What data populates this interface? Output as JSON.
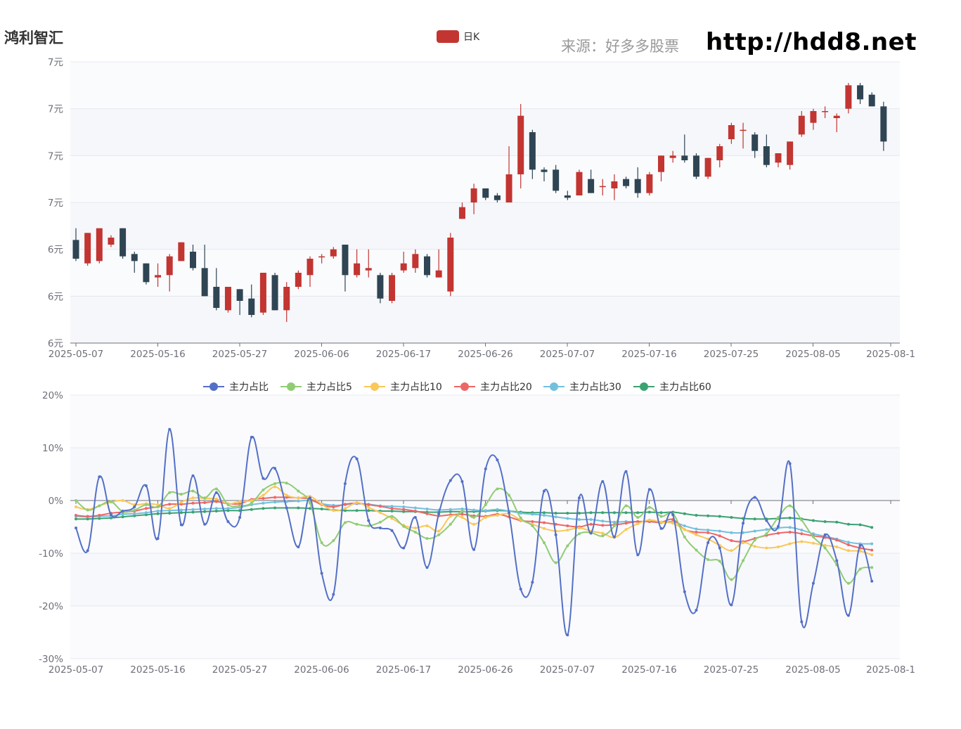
{
  "header": {
    "title": "鸿利智汇",
    "source": "来源：好多多股票",
    "url": "http://hdd8.net"
  },
  "colors": {
    "up": "#c23531",
    "down": "#2f4554",
    "series": [
      "#5470c6",
      "#91cc75",
      "#fac858",
      "#ee6666",
      "#73c0de",
      "#3ba272"
    ]
  },
  "chart_data": [
    {
      "type": "candlestick",
      "legend": [
        "日K"
      ],
      "ytick_labels": [
        "6元",
        "6元",
        "6元",
        "7元",
        "7元",
        "7元",
        "7元"
      ],
      "xtick_labels": [
        "2025-05-07",
        "2025-05-16",
        "2025-05-27",
        "2025-06-06",
        "2025-06-17",
        "2025-06-26",
        "2025-07-07",
        "2025-07-16",
        "2025-07-25",
        "2025-08-05",
        "2025-08-1"
      ],
      "ylim": [
        6.0,
        7.2
      ],
      "candles": [
        [
          6.44,
          6.36,
          6.35,
          6.49
        ],
        [
          6.34,
          6.47,
          6.33,
          6.47
        ],
        [
          6.35,
          6.49,
          6.34,
          6.49
        ],
        [
          6.42,
          6.45,
          6.41,
          6.46
        ],
        [
          6.49,
          6.37,
          6.36,
          6.49
        ],
        [
          6.38,
          6.35,
          6.3,
          6.39
        ],
        [
          6.34,
          6.26,
          6.25,
          6.34
        ],
        [
          6.28,
          6.29,
          6.24,
          6.34
        ],
        [
          6.29,
          6.37,
          6.22,
          6.38
        ],
        [
          6.35,
          6.43,
          6.35,
          6.43
        ],
        [
          6.39,
          6.32,
          6.31,
          6.42
        ],
        [
          6.32,
          6.2,
          6.2,
          6.42
        ],
        [
          6.24,
          6.15,
          6.14,
          6.32
        ],
        [
          6.14,
          6.24,
          6.13,
          6.24
        ],
        [
          6.23,
          6.18,
          6.12,
          6.23
        ],
        [
          6.19,
          6.12,
          6.11,
          6.25
        ],
        [
          6.13,
          6.3,
          6.12,
          6.3
        ],
        [
          6.29,
          6.14,
          6.14,
          6.3
        ],
        [
          6.14,
          6.24,
          6.09,
          6.26
        ],
        [
          6.24,
          6.3,
          6.23,
          6.31
        ],
        [
          6.29,
          6.36,
          6.24,
          6.37
        ],
        [
          6.37,
          6.37,
          6.34,
          6.38
        ],
        [
          6.37,
          6.4,
          6.36,
          6.41
        ],
        [
          6.42,
          6.29,
          6.22,
          6.42
        ],
        [
          6.29,
          6.34,
          6.28,
          6.4
        ],
        [
          6.31,
          6.32,
          6.28,
          6.4
        ],
        [
          6.29,
          6.19,
          6.17,
          6.3
        ],
        [
          6.18,
          6.29,
          6.17,
          6.3
        ],
        [
          6.31,
          6.34,
          6.3,
          6.39
        ],
        [
          6.32,
          6.38,
          6.3,
          6.4
        ],
        [
          6.37,
          6.29,
          6.28,
          6.38
        ],
        [
          6.28,
          6.31,
          6.28,
          6.4
        ],
        [
          6.22,
          6.45,
          6.2,
          6.47
        ],
        [
          6.53,
          6.58,
          6.53,
          6.6
        ],
        [
          6.6,
          6.66,
          6.55,
          6.68
        ],
        [
          6.66,
          6.62,
          6.61,
          6.65
        ],
        [
          6.63,
          6.61,
          6.6,
          6.64
        ],
        [
          6.6,
          6.72,
          6.6,
          6.84
        ],
        [
          6.72,
          6.97,
          6.66,
          7.02
        ],
        [
          6.9,
          6.74,
          6.7,
          6.91
        ],
        [
          6.74,
          6.73,
          6.69,
          6.75
        ],
        [
          6.74,
          6.65,
          6.64,
          6.76
        ],
        [
          6.63,
          6.62,
          6.61,
          6.65
        ],
        [
          6.63,
          6.73,
          6.63,
          6.74
        ],
        [
          6.7,
          6.64,
          6.64,
          6.74
        ],
        [
          6.67,
          6.67,
          6.63,
          6.7
        ],
        [
          6.66,
          6.69,
          6.61,
          6.72
        ],
        [
          6.7,
          6.67,
          6.66,
          6.71
        ],
        [
          6.7,
          6.64,
          6.62,
          6.75
        ],
        [
          6.64,
          6.72,
          6.63,
          6.73
        ],
        [
          6.73,
          6.8,
          6.69,
          6.8
        ],
        [
          6.79,
          6.8,
          6.77,
          6.82
        ],
        [
          6.8,
          6.78,
          6.77,
          6.89
        ],
        [
          6.8,
          6.71,
          6.7,
          6.81
        ],
        [
          6.71,
          6.79,
          6.7,
          6.79
        ],
        [
          6.78,
          6.84,
          6.75,
          6.85
        ],
        [
          6.87,
          6.93,
          6.85,
          6.94
        ],
        [
          6.91,
          6.91,
          6.83,
          6.94
        ],
        [
          6.89,
          6.82,
          6.79,
          6.9
        ],
        [
          6.84,
          6.76,
          6.75,
          6.89
        ],
        [
          6.77,
          6.81,
          6.75,
          6.81
        ],
        [
          6.76,
          6.86,
          6.74,
          6.86
        ],
        [
          6.89,
          6.97,
          6.88,
          6.99
        ],
        [
          6.94,
          6.99,
          6.91,
          7.0
        ],
        [
          6.99,
          6.99,
          6.96,
          7.01
        ],
        [
          6.96,
          6.97,
          6.9,
          6.98
        ],
        [
          7.0,
          7.1,
          6.98,
          7.11
        ],
        [
          7.1,
          7.04,
          7.02,
          7.11
        ],
        [
          7.06,
          7.01,
          7.01,
          7.07
        ],
        [
          7.01,
          6.86,
          6.82,
          7.03
        ]
      ]
    },
    {
      "type": "line",
      "ytick_labels": [
        "-30%",
        "-20%",
        "-10%",
        "0%",
        "10%",
        "20%"
      ],
      "xtick_labels": [
        "2025-05-07",
        "2025-05-16",
        "2025-05-27",
        "2025-06-06",
        "2025-06-17",
        "2025-06-26",
        "2025-07-07",
        "2025-07-16",
        "2025-07-25",
        "2025-08-05",
        "2025-08-1"
      ],
      "ylim": [
        -30,
        20
      ],
      "series": [
        {
          "name": "主力占比",
          "values": [
            -5.2,
            -9.5,
            4.5,
            -2.7,
            -2.0,
            -1.2,
            2.8,
            -7.2,
            13.5,
            -4.6,
            4.7,
            -4.5,
            1.5,
            -4.0,
            -3.2,
            12.0,
            4.2,
            6.1,
            -1.4,
            -8.8,
            0.5,
            -13.8,
            -17.8,
            3.2,
            7.9,
            -3.8,
            -5.2,
            -5.7,
            -9.0,
            -3.2,
            -12.7,
            -2.5,
            3.8,
            3.6,
            -9.3,
            6.0,
            7.7,
            -2.3,
            -16.8,
            -15.5,
            1.8,
            -6.5,
            -25.5,
            0.5,
            -6.2,
            3.6,
            -6.9,
            5.5,
            -10.3,
            2.1,
            -5.3,
            -2.7,
            -17.3,
            -20.8,
            -8.0,
            -9.0,
            -19.8,
            -4.3,
            0.6,
            -3.8,
            -4.9,
            7.0,
            -23.0,
            -15.7,
            -6.5,
            -11.4,
            -21.8,
            -8.5,
            -15.3
          ]
        },
        {
          "name": "主力占比5",
          "values": [
            0.0,
            -1.8,
            -1.0,
            -0.2,
            -2.1,
            -1.8,
            -0.8,
            -1.2,
            1.5,
            1.2,
            1.8,
            0.5,
            2.2,
            -0.8,
            -1.0,
            -0.5,
            2.0,
            3.2,
            3.3,
            1.8,
            -0.5,
            -8.0,
            -7.6,
            -4.2,
            -4.5,
            -4.8,
            -4.1,
            -3.0,
            -4.9,
            -6.0,
            -7.2,
            -6.5,
            -4.5,
            -2.0,
            -3.2,
            -0.8,
            2.2,
            1.0,
            -3.3,
            -4.8,
            -8.0,
            -11.8,
            -8.6,
            -6.3,
            -6.1,
            -6.7,
            -4.8,
            -1.0,
            -3.2,
            -1.3,
            -3.0,
            -2.5,
            -6.9,
            -9.4,
            -11.2,
            -11.5,
            -15.0,
            -11.4,
            -7.5,
            -6.3,
            -3.2,
            -1.0,
            -3.7,
            -6.9,
            -9.0,
            -12.2,
            -15.7,
            -13.0,
            -12.7
          ]
        },
        {
          "name": "主力占比10",
          "values": [
            -1.2,
            -1.7,
            -1.0,
            -0.3,
            0.0,
            -0.8,
            -0.6,
            -0.8,
            -1.5,
            -0.3,
            0.5,
            0.4,
            0.3,
            -0.6,
            -0.2,
            0.0,
            1.0,
            2.6,
            1.0,
            0.5,
            0.8,
            -0.7,
            -1.9,
            -1.5,
            -0.4,
            -1.3,
            -2.3,
            -3.4,
            -4.7,
            -5.2,
            -4.8,
            -5.8,
            -3.0,
            -3.2,
            -4.5,
            -3.2,
            -2.8,
            -2.5,
            -3.7,
            -4.5,
            -5.3,
            -5.8,
            -5.6,
            -5.2,
            -5.8,
            -6.2,
            -7.0,
            -5.5,
            -4.4,
            -3.7,
            -4.1,
            -4.3,
            -5.5,
            -6.5,
            -7.3,
            -8.5,
            -9.5,
            -8.0,
            -8.7,
            -9.0,
            -8.8,
            -8.2,
            -7.8,
            -8.1,
            -8.5,
            -8.8,
            -9.5,
            -9.6,
            -10.3
          ]
        },
        {
          "name": "主力占比20",
          "values": [
            -2.8,
            -3.0,
            -2.8,
            -2.4,
            -2.2,
            -2.0,
            -1.5,
            -1.2,
            -0.7,
            -0.7,
            -0.5,
            -0.4,
            -0.2,
            -0.6,
            -0.6,
            0.2,
            0.4,
            0.6,
            0.6,
            0.5,
            0.3,
            -0.8,
            -1.2,
            -0.7,
            -0.5,
            -0.8,
            -1.1,
            -1.5,
            -1.7,
            -2.0,
            -2.5,
            -2.9,
            -2.7,
            -2.6,
            -2.9,
            -3.0,
            -2.6,
            -3.1,
            -3.8,
            -4.0,
            -4.2,
            -4.5,
            -4.8,
            -5.0,
            -4.5,
            -4.7,
            -4.6,
            -4.3,
            -4.0,
            -4.0,
            -4.1,
            -3.6,
            -5.5,
            -6.0,
            -6.1,
            -6.7,
            -7.6,
            -7.8,
            -7.2,
            -6.6,
            -6.2,
            -6.0,
            -6.3,
            -6.7,
            -7.0,
            -7.5,
            -8.4,
            -9.0,
            -9.4
          ]
        },
        {
          "name": "主力占比30",
          "values": [
            -3.0,
            -3.1,
            -3.0,
            -2.9,
            -2.6,
            -2.5,
            -2.3,
            -2.0,
            -1.9,
            -1.8,
            -1.7,
            -1.6,
            -1.5,
            -1.5,
            -1.3,
            -0.8,
            -0.5,
            -0.3,
            -0.2,
            -0.1,
            0.0,
            -0.6,
            -0.9,
            -0.8,
            -0.6,
            -0.7,
            -1.0,
            -1.1,
            -1.2,
            -1.4,
            -1.6,
            -1.8,
            -1.7,
            -1.6,
            -1.8,
            -1.9,
            -1.7,
            -2.0,
            -2.4,
            -2.6,
            -2.8,
            -3.1,
            -3.4,
            -3.6,
            -3.6,
            -3.9,
            -4.1,
            -4.0,
            -4.0,
            -4.0,
            -4.2,
            -4.0,
            -4.8,
            -5.4,
            -5.6,
            -5.8,
            -6.1,
            -6.1,
            -5.8,
            -5.5,
            -5.2,
            -5.1,
            -5.6,
            -6.3,
            -6.8,
            -7.3,
            -7.9,
            -8.2,
            -8.2
          ]
        },
        {
          "name": "主力占比60",
          "values": [
            -3.5,
            -3.5,
            -3.4,
            -3.3,
            -3.1,
            -2.9,
            -2.7,
            -2.5,
            -2.4,
            -2.3,
            -2.2,
            -2.1,
            -2.0,
            -1.9,
            -1.9,
            -1.7,
            -1.5,
            -1.4,
            -1.4,
            -1.4,
            -1.5,
            -1.6,
            -1.8,
            -1.9,
            -1.9,
            -1.9,
            -2.0,
            -2.0,
            -2.1,
            -2.1,
            -2.2,
            -2.2,
            -2.1,
            -2.1,
            -2.1,
            -2.0,
            -1.9,
            -2.0,
            -2.2,
            -2.3,
            -2.3,
            -2.4,
            -2.4,
            -2.4,
            -2.3,
            -2.3,
            -2.3,
            -2.3,
            -2.3,
            -2.2,
            -2.3,
            -2.2,
            -2.5,
            -2.8,
            -2.9,
            -3.0,
            -3.2,
            -3.4,
            -3.5,
            -3.5,
            -3.4,
            -3.3,
            -3.5,
            -3.8,
            -4.0,
            -4.1,
            -4.5,
            -4.6,
            -5.1
          ]
        }
      ]
    }
  ]
}
